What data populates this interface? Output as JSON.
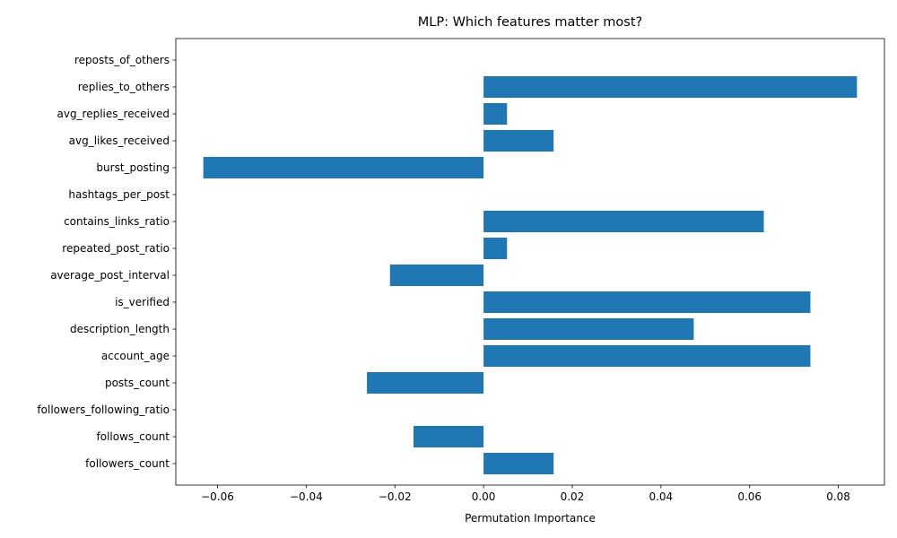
{
  "chart_data": {
    "type": "bar",
    "orientation": "horizontal",
    "title": "MLP: Which features matter most?",
    "xlabel": "Permutation Importance",
    "ylabel": "",
    "xlim": [
      -0.0694,
      0.0904
    ],
    "xticks": [
      -0.06,
      -0.04,
      -0.02,
      0.0,
      0.02,
      0.04,
      0.06,
      0.08
    ],
    "xtick_labels": [
      "−0.06",
      "−0.04",
      "−0.02",
      "0.00",
      "0.02",
      "0.04",
      "0.06",
      "0.08"
    ],
    "bar_color": "#1f77b4",
    "grid": false,
    "legend": "none",
    "categories": [
      "followers_count",
      "follows_count",
      "followers_following_ratio",
      "posts_count",
      "account_age",
      "description_length",
      "is_verified",
      "average_post_interval",
      "repeated_post_ratio",
      "contains_links_ratio",
      "hashtags_per_post",
      "burst_posting",
      "avg_likes_received",
      "avg_replies_received",
      "replies_to_others",
      "reposts_of_others"
    ],
    "values": [
      0.0158,
      -0.0158,
      0.0,
      -0.0263,
      0.0737,
      0.0474,
      0.0737,
      -0.0211,
      0.0053,
      0.0632,
      0.0,
      -0.0632,
      0.0158,
      0.0053,
      0.0842,
      0.0
    ]
  }
}
